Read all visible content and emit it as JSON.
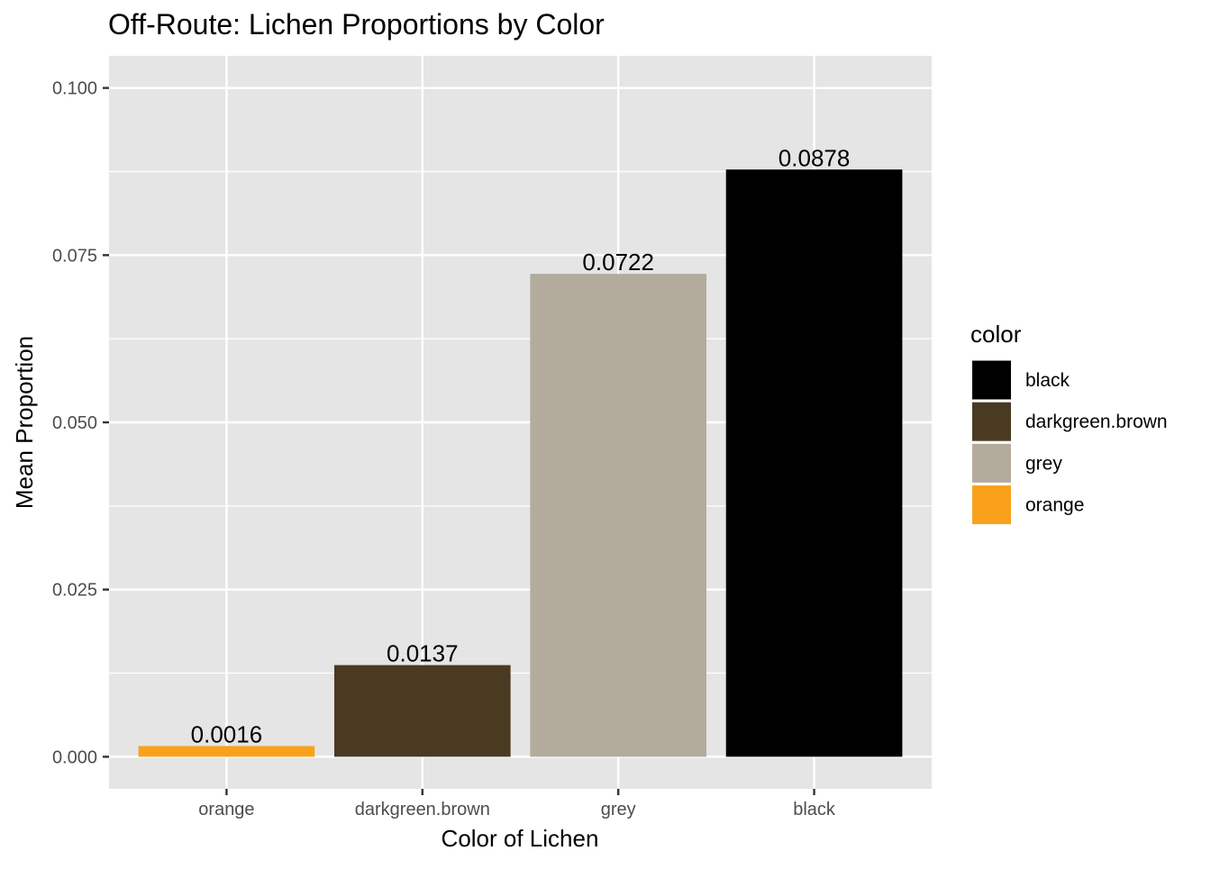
{
  "chart_data": {
    "type": "bar",
    "title": "Off-Route: Lichen Proportions by Color",
    "xlabel": "Color of Lichen",
    "ylabel": "Mean Proportion",
    "categories": [
      "orange",
      "darkgreen.brown",
      "grey",
      "black"
    ],
    "values": [
      0.0016,
      0.0137,
      0.0722,
      0.0878
    ],
    "data_labels": [
      "0.0016",
      "0.0137",
      "0.0722",
      "0.0878"
    ],
    "bar_colors": [
      "#F9A11B",
      "#4A3A22",
      "#B3AC9C",
      "#000000"
    ],
    "ylim": [
      -0.0048,
      0.1048
    ],
    "yticks": [
      0.0,
      0.025,
      0.05,
      0.075,
      0.1
    ],
    "ytick_labels": [
      "0.000",
      "0.025",
      "0.050",
      "0.075",
      "0.100"
    ],
    "grid": true,
    "panel_background": "#E5E5E5",
    "legend": {
      "title": "color",
      "position": "right",
      "entries": [
        {
          "label": "black",
          "color": "#000000"
        },
        {
          "label": "darkgreen.brown",
          "color": "#4A3A22"
        },
        {
          "label": "grey",
          "color": "#B3AC9C"
        },
        {
          "label": "orange",
          "color": "#F9A11B"
        }
      ]
    }
  }
}
